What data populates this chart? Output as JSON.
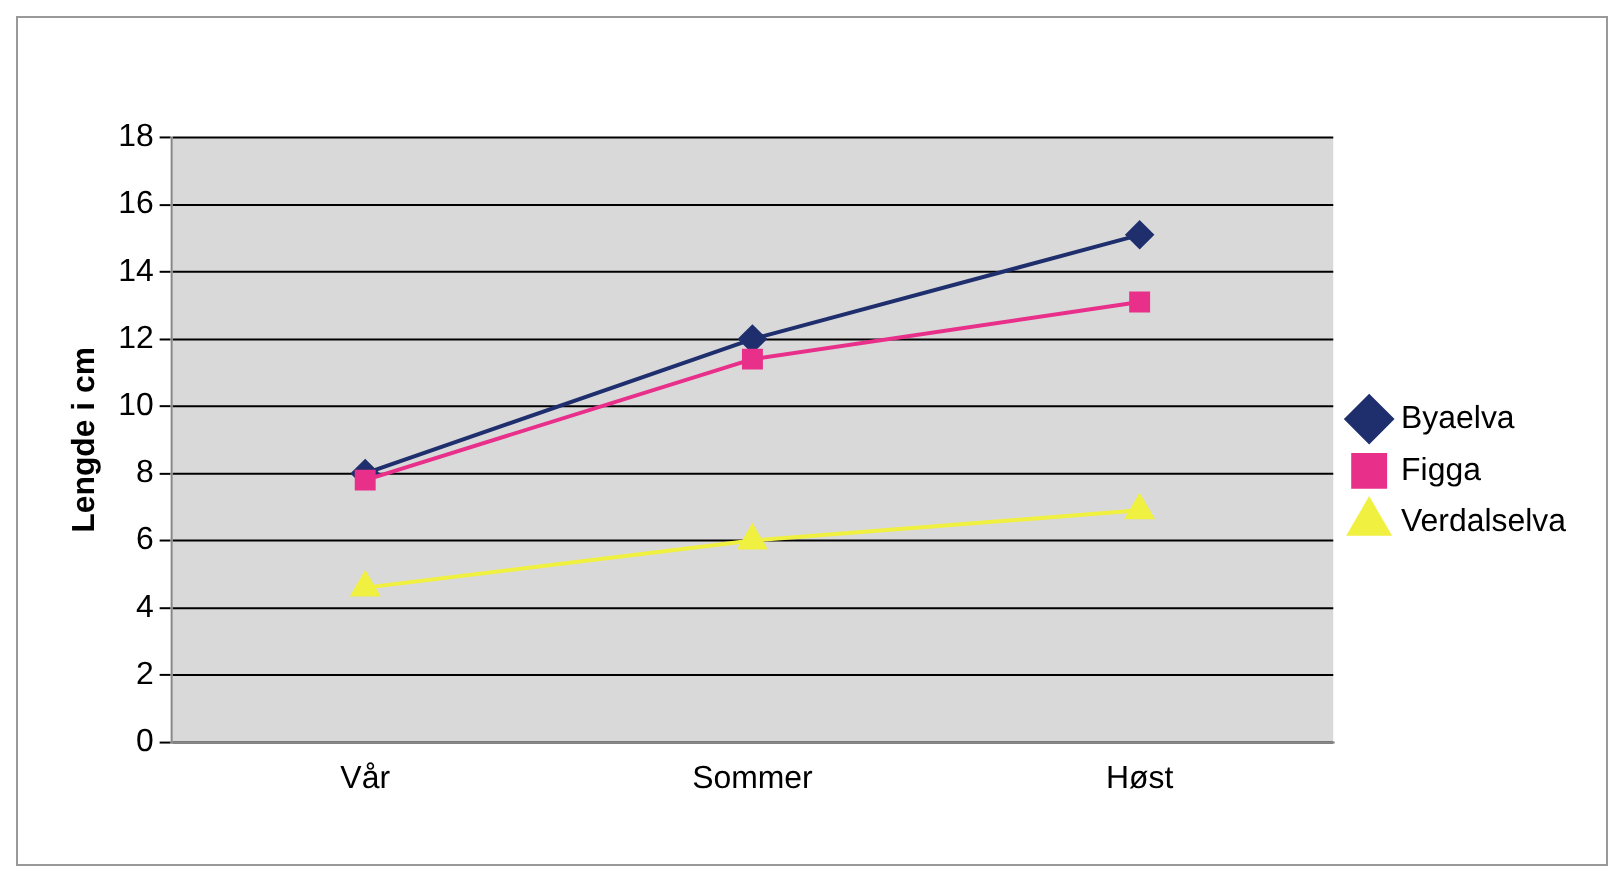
{
  "chart_data": {
    "type": "line",
    "ylabel": "Lengde i cm",
    "categories": [
      "Vår",
      "Sommer",
      "Høst"
    ],
    "series": [
      {
        "name": "Byaelva",
        "color": "#1f2f6e",
        "marker": "diamond",
        "values": [
          8.0,
          12.0,
          15.1
        ]
      },
      {
        "name": "Figga",
        "color": "#e8308a",
        "marker": "square",
        "values": [
          7.8,
          11.4,
          13.1
        ]
      },
      {
        "name": "Verdalselva",
        "color": "#f0f040",
        "marker": "triangle",
        "values": [
          4.6,
          6.0,
          6.9
        ]
      }
    ],
    "ylim": [
      0,
      18
    ],
    "yticks": [
      0,
      2,
      4,
      6,
      8,
      10,
      12,
      14,
      16,
      18
    ],
    "grid": "y",
    "legend": "right"
  }
}
